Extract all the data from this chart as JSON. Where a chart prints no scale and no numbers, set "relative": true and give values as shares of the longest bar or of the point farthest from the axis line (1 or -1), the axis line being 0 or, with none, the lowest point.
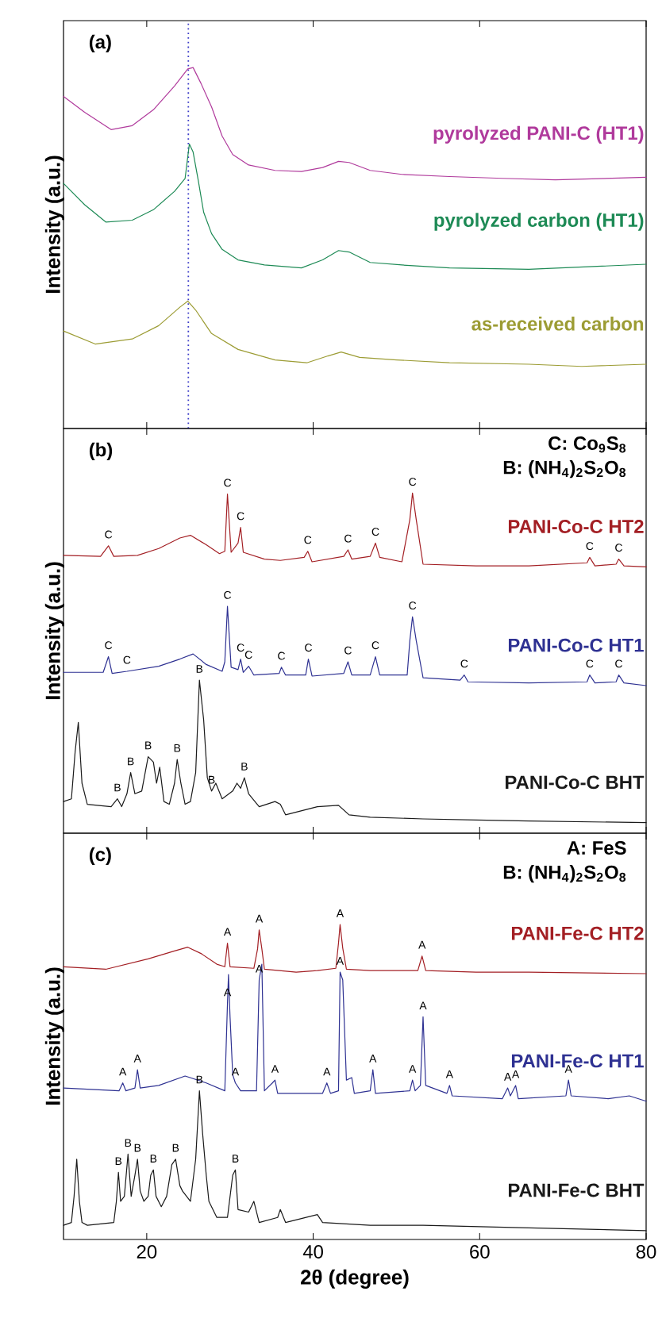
{
  "chart_data": [
    {
      "type": "line",
      "relative": true,
      "xlim": [
        10,
        80
      ],
      "xticks": [
        20,
        40,
        60,
        80
      ],
      "tick_labels": false,
      "ylabel": "Intensity (a.u.)",
      "series": [
        {
          "name": "pyrolyzed PANI-C (HT1)",
          "color": "#b03a9c",
          "x": [
            10,
            12.54,
            15.72,
            18.26,
            20.8,
            23.34,
            24.93,
            25.57,
            26.52,
            27.79,
            29.06,
            30.33,
            32.24,
            35.41,
            38.59,
            41.13,
            43.04,
            44.31,
            46.85,
            50.66,
            56.38,
            62.73,
            69.09,
            80
          ],
          "values": [
            0.92,
            0.876,
            0.828,
            0.839,
            0.883,
            0.949,
            0.996,
            1.0,
            0.956,
            0.891,
            0.81,
            0.759,
            0.73,
            0.715,
            0.712,
            0.723,
            0.74,
            0.737,
            0.715,
            0.704,
            0.698,
            0.693,
            0.689,
            0.696
          ]
        },
        {
          "name": "pyrolyzed carbon (HT1)",
          "color": "#1d8a55",
          "x": [
            10,
            12.54,
            15.08,
            18.26,
            20.8,
            23.34,
            24.61,
            25.12,
            25.57,
            26.2,
            26.84,
            27.79,
            29.06,
            30.97,
            34.14,
            38.59,
            41.13,
            43.04,
            44.31,
            46.85,
            50.66,
            56.38,
            65.91,
            80
          ],
          "values": [
            0.679,
            0.62,
            0.572,
            0.577,
            0.606,
            0.657,
            0.693,
            0.788,
            0.766,
            0.686,
            0.599,
            0.54,
            0.496,
            0.467,
            0.453,
            0.445,
            0.467,
            0.493,
            0.489,
            0.46,
            0.453,
            0.445,
            0.441,
            0.455
          ]
        },
        {
          "name": "as-received carbon",
          "color": "#9c9c34",
          "x": [
            10,
            13.81,
            18.26,
            21.44,
            23.98,
            24.93,
            25.88,
            27.79,
            30.97,
            35.41,
            39.23,
            41.77,
            43.36,
            45.58,
            50.03,
            56.38,
            65.91,
            72.27,
            80
          ],
          "values": [
            0.27,
            0.234,
            0.248,
            0.285,
            0.336,
            0.353,
            0.328,
            0.263,
            0.219,
            0.19,
            0.182,
            0.201,
            0.212,
            0.197,
            0.19,
            0.182,
            0.178,
            0.172,
            0.178
          ]
        }
      ],
      "ref_lines": [
        {
          "axis": "x",
          "value": 25,
          "color": "#3c3cc8",
          "line_style": "dotted"
        }
      ],
      "annotations": [
        "(a)"
      ]
    },
    {
      "type": "line",
      "relative": true,
      "xlim": [
        10,
        80
      ],
      "xticks": [
        20,
        40,
        60,
        80
      ],
      "tick_labels": false,
      "ylabel": "Intensity (a.u.)",
      "series": [
        {
          "name": "PANI-Co-C HT2",
          "color": "#a31f24",
          "x": [
            10,
            14.45,
            15.4,
            16.04,
            18.89,
            21.44,
            23.98,
            25.25,
            27.15,
            28.74,
            29.38,
            29.7,
            30.14,
            30.97,
            31.28,
            31.6,
            34.14,
            36.05,
            38.91,
            39.35,
            39.86,
            43.67,
            44.18,
            44.63,
            46.85,
            47.48,
            47.99,
            50.66,
            51.61,
            51.93,
            52.38,
            53.2,
            59.56,
            65.91,
            72.9,
            73.22,
            73.85,
            76.39,
            76.71,
            77.34,
            80
          ],
          "values": [
            0.817,
            0.814,
            0.845,
            0.814,
            0.817,
            0.837,
            0.868,
            0.876,
            0.848,
            0.822,
            0.829,
            0.997,
            0.826,
            0.853,
            0.899,
            0.826,
            0.806,
            0.802,
            0.811,
            0.829,
            0.798,
            0.814,
            0.833,
            0.806,
            0.814,
            0.853,
            0.811,
            0.798,
            0.922,
            1.0,
            0.922,
            0.791,
            0.786,
            0.786,
            0.795,
            0.811,
            0.786,
            0.791,
            0.806,
            0.786,
            0.783
          ]
        },
        {
          "name": "PANI-Co-C HT1",
          "color": "#2e3192",
          "x": [
            10,
            14.77,
            15.4,
            15.84,
            17.62,
            21.44,
            23.98,
            25.57,
            27.15,
            29.06,
            29.38,
            29.7,
            30.14,
            30.97,
            31.28,
            31.6,
            32.24,
            32.87,
            35.92,
            36.18,
            36.68,
            39.1,
            39.42,
            39.86,
            43.67,
            44.18,
            44.63,
            46.85,
            47.48,
            47.99,
            51.29,
            51.61,
            51.93,
            52.38,
            53.2,
            57.65,
            58.15,
            58.6,
            65.91,
            72.9,
            73.22,
            73.85,
            76.39,
            76.71,
            77.34,
            80
          ],
          "values": [
            0.473,
            0.473,
            0.519,
            0.47,
            0.476,
            0.491,
            0.512,
            0.527,
            0.496,
            0.476,
            0.504,
            0.667,
            0.488,
            0.481,
            0.512,
            0.473,
            0.491,
            0.465,
            0.47,
            0.488,
            0.465,
            0.465,
            0.512,
            0.462,
            0.47,
            0.504,
            0.465,
            0.465,
            0.519,
            0.465,
            0.465,
            0.566,
            0.636,
            0.566,
            0.457,
            0.45,
            0.465,
            0.445,
            0.442,
            0.445,
            0.465,
            0.442,
            0.445,
            0.465,
            0.442,
            0.434
          ]
        },
        {
          "name": "PANI-Co-C BHT",
          "color": "#1a1a1a",
          "x": [
            10,
            10.95,
            11.4,
            11.78,
            12.22,
            12.86,
            15.72,
            16.48,
            16.99,
            17.62,
            18.07,
            18.58,
            19.4,
            20.17,
            20.8,
            21.18,
            21.56,
            22.07,
            22.71,
            23.34,
            23.66,
            24.1,
            24.61,
            25.25,
            25.88,
            26.33,
            26.84,
            27.28,
            27.79,
            28.3,
            29.06,
            30.33,
            30.84,
            31.28,
            31.73,
            32.24,
            33.51,
            35.41,
            36.05,
            36.68,
            40.5,
            43.04,
            44.31,
            46.85,
            53.2,
            59.56,
            65.91,
            80
          ],
          "values": [
            0.093,
            0.101,
            0.24,
            0.326,
            0.147,
            0.085,
            0.078,
            0.101,
            0.078,
            0.116,
            0.178,
            0.116,
            0.124,
            0.225,
            0.209,
            0.147,
            0.194,
            0.093,
            0.085,
            0.147,
            0.217,
            0.147,
            0.085,
            0.093,
            0.178,
            0.45,
            0.333,
            0.163,
            0.124,
            0.147,
            0.101,
            0.124,
            0.147,
            0.132,
            0.163,
            0.116,
            0.078,
            0.093,
            0.085,
            0.054,
            0.078,
            0.082,
            0.054,
            0.047,
            0.042,
            0.039,
            0.036,
            0.031
          ]
        }
      ],
      "annotations": [
        "(b)",
        "C: Co$_{9}$S$_{8}$",
        "B: (NH$_{4}$)$_{2}$S$_{2}$O$_{8}$",
        {
          "text": "C",
          "x": 15.4,
          "y": 0.845
        },
        {
          "text": "C",
          "x": 29.7,
          "y": 0.997
        },
        {
          "text": "C",
          "x": 31.28,
          "y": 0.899
        },
        {
          "text": "C",
          "x": 39.35,
          "y": 0.829
        },
        {
          "text": "C",
          "x": 44.18,
          "y": 0.833
        },
        {
          "text": "C",
          "x": 47.48,
          "y": 0.853
        },
        {
          "text": "C",
          "x": 51.93,
          "y": 1.0
        },
        {
          "text": "C",
          "x": 73.22,
          "y": 0.811
        },
        {
          "text": "C",
          "x": 76.71,
          "y": 0.806
        },
        {
          "text": "C",
          "x": 15.4,
          "y": 0.519
        },
        {
          "text": "C",
          "x": 17.62,
          "y": 0.476
        },
        {
          "text": "C",
          "x": 29.7,
          "y": 0.667
        },
        {
          "text": "C",
          "x": 31.28,
          "y": 0.512
        },
        {
          "text": "C",
          "x": 32.24,
          "y": 0.491
        },
        {
          "text": "C",
          "x": 36.18,
          "y": 0.488
        },
        {
          "text": "C",
          "x": 39.42,
          "y": 0.512
        },
        {
          "text": "C",
          "x": 44.18,
          "y": 0.504
        },
        {
          "text": "C",
          "x": 47.48,
          "y": 0.519
        },
        {
          "text": "C",
          "x": 51.93,
          "y": 0.636
        },
        {
          "text": "C",
          "x": 58.15,
          "y": 0.465
        },
        {
          "text": "C",
          "x": 73.22,
          "y": 0.465
        },
        {
          "text": "C",
          "x": 76.71,
          "y": 0.465
        },
        {
          "text": "B",
          "x": 16.48,
          "y": 0.101
        },
        {
          "text": "B",
          "x": 18.07,
          "y": 0.178
        },
        {
          "text": "B",
          "x": 20.17,
          "y": 0.225
        },
        {
          "text": "B",
          "x": 23.66,
          "y": 0.217
        },
        {
          "text": "B",
          "x": 26.33,
          "y": 0.45
        },
        {
          "text": "B",
          "x": 27.79,
          "y": 0.124
        },
        {
          "text": "B",
          "x": 31.73,
          "y": 0.163
        }
      ]
    },
    {
      "type": "line",
      "relative": true,
      "xlim": [
        10,
        80
      ],
      "xticks": [
        20,
        40,
        60,
        80
      ],
      "tick_labels": "x",
      "xlabel": "2θ (degree)",
      "ylabel": "Intensity (a.u.)",
      "series": [
        {
          "name": "PANI-Fe-C HT2",
          "color": "#a31f24",
          "x": [
            10,
            15.08,
            20.17,
            23.34,
            24.93,
            26.52,
            28.42,
            29.38,
            29.7,
            30.01,
            32.87,
            33.32,
            33.51,
            33.83,
            34.14,
            37.95,
            40.5,
            42.72,
            43.04,
            43.23,
            43.55,
            43.99,
            46.85,
            52.57,
            53.08,
            53.52,
            59.56,
            65.91,
            80
          ],
          "values": [
            0.866,
            0.858,
            0.891,
            0.916,
            0.928,
            0.908,
            0.874,
            0.866,
            0.941,
            0.866,
            0.861,
            0.923,
            0.983,
            0.923,
            0.858,
            0.849,
            0.854,
            0.861,
            0.941,
            1.0,
            0.925,
            0.858,
            0.854,
            0.854,
            0.9,
            0.854,
            0.849,
            0.849,
            0.844
          ]
        },
        {
          "name": "PANI-Fe-C HT1",
          "color": "#2e3192",
          "x": [
            10,
            16.67,
            17.12,
            17.5,
            18.58,
            18.89,
            19.21,
            21.44,
            24.61,
            27.15,
            29.38,
            29.7,
            29.82,
            30.01,
            30.33,
            30.65,
            31.28,
            33.19,
            33.51,
            33.83,
            34.14,
            35.1,
            35.41,
            35.73,
            41.13,
            41.64,
            42.08,
            43.04,
            43.23,
            43.55,
            43.99,
            44.63,
            44.94,
            46.85,
            47.17,
            47.48,
            51.61,
            51.93,
            52.25,
            52.88,
            53.2,
            53.52,
            56.06,
            56.38,
            56.7,
            62.73,
            63.37,
            63.69,
            64.32,
            64.64,
            70.36,
            70.67,
            70.99,
            75.44,
            77.98,
            80
          ],
          "values": [
            0.481,
            0.472,
            0.497,
            0.472,
            0.481,
            0.539,
            0.481,
            0.489,
            0.519,
            0.497,
            0.472,
            0.749,
            0.841,
            0.707,
            0.523,
            0.497,
            0.472,
            0.472,
            0.824,
            0.874,
            0.472,
            0.497,
            0.506,
            0.464,
            0.464,
            0.497,
            0.464,
            0.472,
            0.849,
            0.824,
            0.506,
            0.514,
            0.464,
            0.472,
            0.539,
            0.464,
            0.472,
            0.506,
            0.472,
            0.489,
            0.707,
            0.489,
            0.464,
            0.489,
            0.456,
            0.447,
            0.481,
            0.456,
            0.489,
            0.447,
            0.456,
            0.506,
            0.456,
            0.447,
            0.456,
            0.439
          ]
        },
        {
          "name": "PANI-Fe-C BHT",
          "color": "#1a1a1a",
          "x": [
            10,
            10.95,
            11.27,
            11.59,
            11.91,
            12.22,
            12.86,
            16.04,
            16.35,
            16.6,
            16.86,
            17.31,
            17.75,
            18.13,
            18.58,
            18.89,
            19.21,
            19.66,
            20.17,
            20.48,
            20.8,
            21.12,
            21.75,
            22.39,
            23.02,
            23.47,
            23.98,
            24.29,
            25.25,
            25.88,
            26.33,
            26.71,
            27.15,
            27.47,
            28.42,
            29.7,
            30.33,
            30.65,
            30.97,
            32.24,
            32.87,
            33.51,
            35.73,
            36.05,
            36.68,
            40.5,
            41.13,
            46.85,
            53.2,
            65.91,
            80
          ],
          "values": [
            0.045,
            0.054,
            0.137,
            0.255,
            0.121,
            0.054,
            0.045,
            0.054,
            0.121,
            0.213,
            0.121,
            0.137,
            0.271,
            0.137,
            0.204,
            0.255,
            0.154,
            0.121,
            0.137,
            0.204,
            0.221,
            0.137,
            0.104,
            0.137,
            0.238,
            0.255,
            0.171,
            0.154,
            0.121,
            0.255,
            0.472,
            0.338,
            0.204,
            0.121,
            0.07,
            0.07,
            0.204,
            0.221,
            0.095,
            0.087,
            0.121,
            0.054,
            0.07,
            0.095,
            0.054,
            0.079,
            0.054,
            0.045,
            0.045,
            0.037,
            0.028
          ]
        }
      ],
      "annotations": [
        "(c)",
        "A: FeS",
        "B: (NH$_{4}$)$_{2}$S$_{2}$O$_{8}$",
        {
          "text": "A",
          "x": 29.7,
          "y": 0.941
        },
        {
          "text": "A",
          "x": 33.51,
          "y": 0.983
        },
        {
          "text": "A",
          "x": 43.23,
          "y": 1.0
        },
        {
          "text": "A",
          "x": 53.08,
          "y": 0.9
        },
        {
          "text": "A",
          "x": 17.12,
          "y": 0.497
        },
        {
          "text": "A",
          "x": 18.89,
          "y": 0.539
        },
        {
          "text": "A",
          "x": 29.7,
          "y": 0.749
        },
        {
          "text": "A",
          "x": 30.65,
          "y": 0.497
        },
        {
          "text": "A",
          "x": 33.51,
          "y": 0.824
        },
        {
          "text": "A",
          "x": 35.41,
          "y": 0.506
        },
        {
          "text": "A",
          "x": 41.64,
          "y": 0.497
        },
        {
          "text": "A",
          "x": 43.23,
          "y": 0.849
        },
        {
          "text": "A",
          "x": 47.17,
          "y": 0.539
        },
        {
          "text": "A",
          "x": 51.93,
          "y": 0.506
        },
        {
          "text": "A",
          "x": 53.2,
          "y": 0.707
        },
        {
          "text": "A",
          "x": 56.38,
          "y": 0.489
        },
        {
          "text": "A",
          "x": 63.37,
          "y": 0.481
        },
        {
          "text": "A",
          "x": 64.32,
          "y": 0.489
        },
        {
          "text": "A",
          "x": 70.67,
          "y": 0.506
        },
        {
          "text": "B",
          "x": 16.6,
          "y": 0.213
        },
        {
          "text": "B",
          "x": 17.75,
          "y": 0.271
        },
        {
          "text": "B",
          "x": 18.89,
          "y": 0.255
        },
        {
          "text": "B",
          "x": 20.8,
          "y": 0.221
        },
        {
          "text": "B",
          "x": 23.47,
          "y": 0.255
        },
        {
          "text": "B",
          "x": 26.33,
          "y": 0.472
        },
        {
          "text": "B",
          "x": 30.65,
          "y": 0.221
        }
      ]
    }
  ]
}
